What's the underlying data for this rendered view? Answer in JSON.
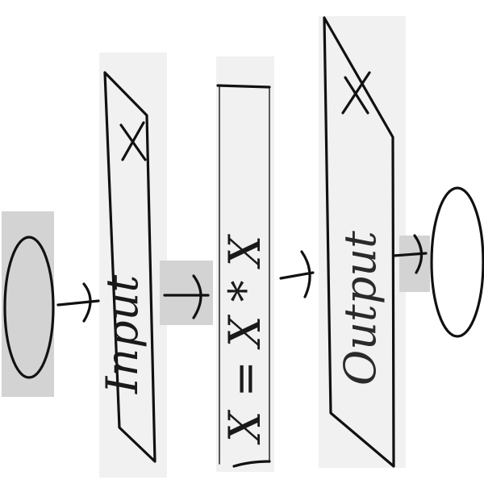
{
  "diagram": {
    "start_node": "",
    "input_box": {
      "label": "Input",
      "symbol": "X"
    },
    "process_box": {
      "expression": "X = X * X"
    },
    "output_box": {
      "label": "Output",
      "symbol": "X"
    },
    "end_node": "",
    "colors": {
      "ink": "#111111",
      "paper": "#ffffff",
      "highlight_light": "#f1f1f1",
      "highlight_dark": "#d3d3d3"
    }
  }
}
